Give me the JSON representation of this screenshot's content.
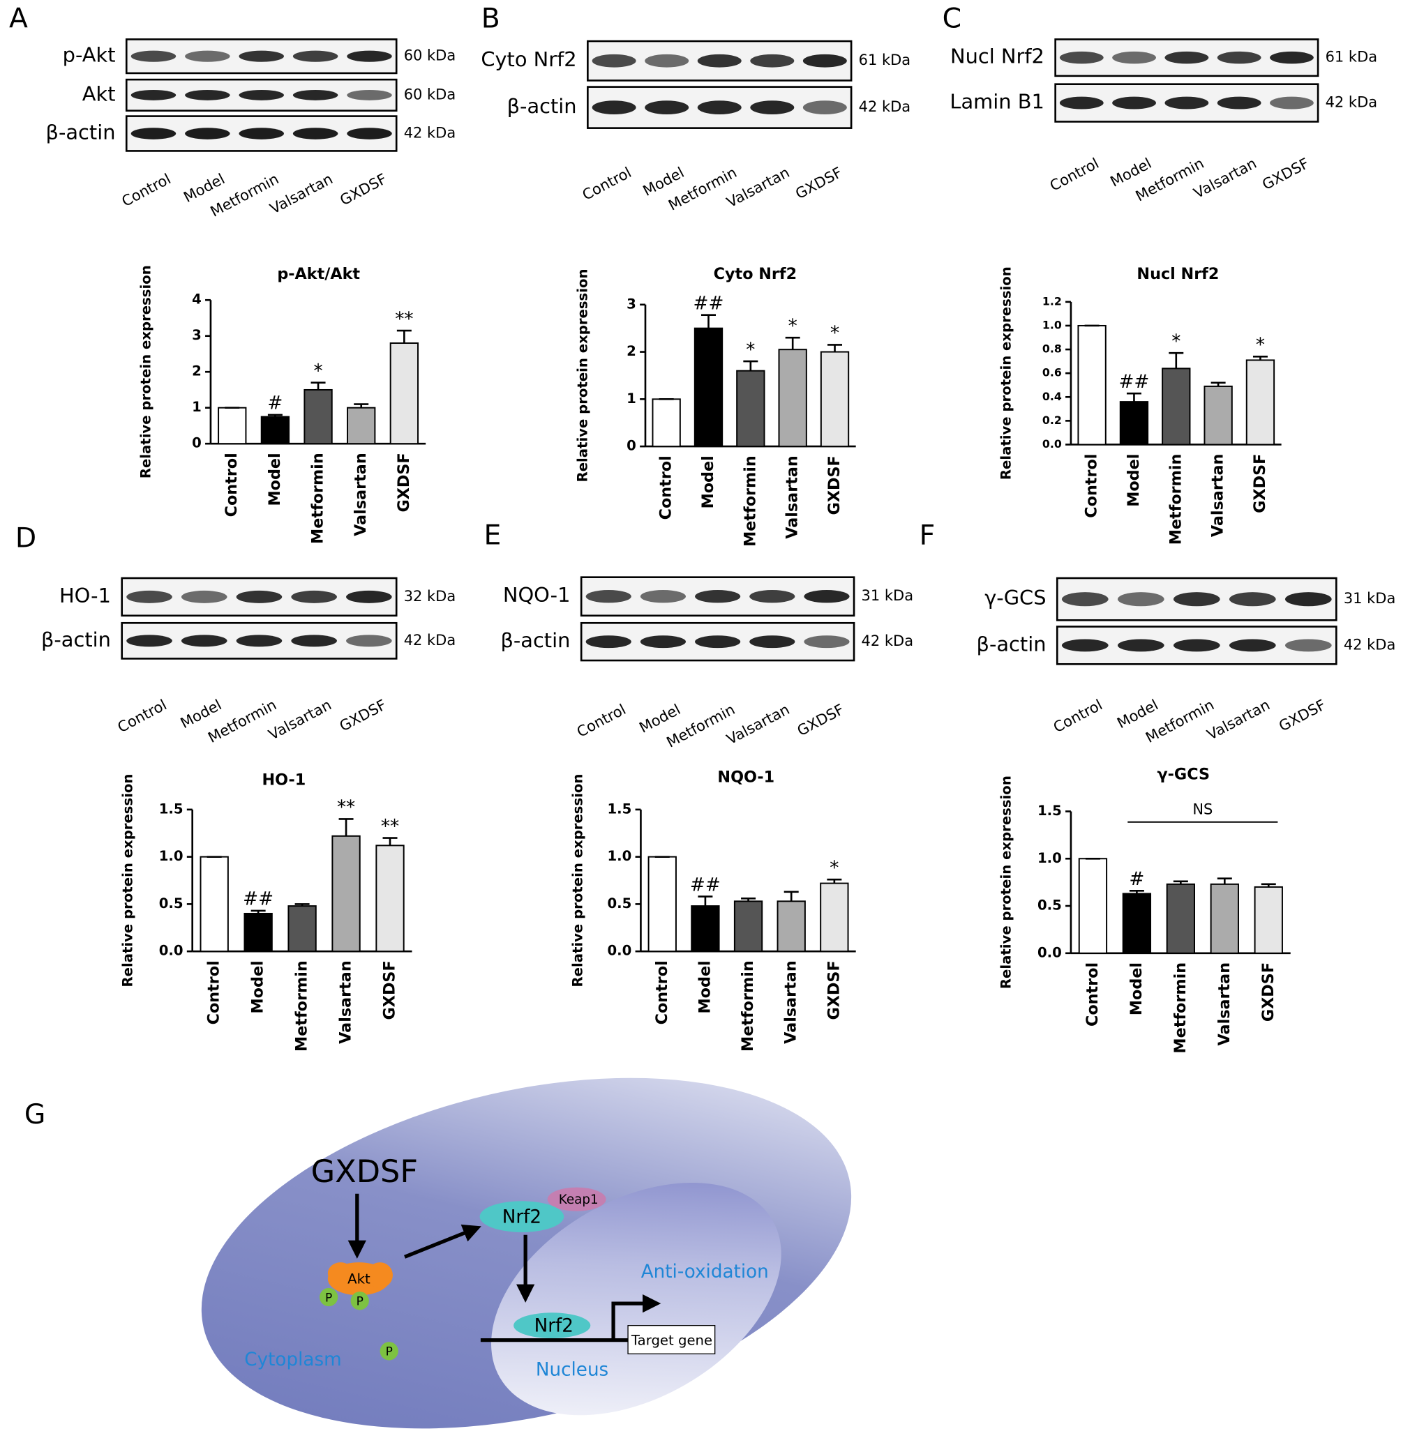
{
  "panel_labels": [
    "A",
    "B",
    "C",
    "D",
    "E",
    "F",
    "G"
  ],
  "lanes": [
    "Control",
    "Model",
    "Metformin",
    "Valsartan",
    "GXDSF"
  ],
  "blots": [
    {
      "rows": [
        {
          "label": "p-Akt",
          "kda": "60 kDa"
        },
        {
          "label": "Akt",
          "kda": "60 kDa"
        },
        {
          "label": "β-actin",
          "kda": "42 kDa"
        }
      ]
    },
    {
      "rows": [
        {
          "label": "Cyto Nrf2",
          "kda": "61 kDa"
        },
        {
          "label": "β-actin",
          "kda": "42 kDa"
        }
      ]
    },
    {
      "rows": [
        {
          "label": "Nucl Nrf2",
          "kda": "61 kDa"
        },
        {
          "label": "Lamin B1",
          "kda": "42 kDa"
        }
      ]
    },
    {
      "rows": [
        {
          "label": "HO-1",
          "kda": "32 kDa"
        },
        {
          "label": "β-actin",
          "kda": "42 kDa"
        }
      ]
    },
    {
      "rows": [
        {
          "label": "NQO-1",
          "kda": "31 kDa"
        },
        {
          "label": "β-actin",
          "kda": "42 kDa"
        }
      ]
    },
    {
      "rows": [
        {
          "label": "γ-GCS",
          "kda": "31 kDa"
        },
        {
          "label": "β-actin",
          "kda": "42 kDa"
        }
      ]
    }
  ],
  "chart_data": [
    {
      "type": "bar",
      "title": "p-Akt/Akt",
      "y_label": "Relative protein expression",
      "categories": [
        "Control",
        "Model",
        "Metformin",
        "Valsartan",
        "GXDSF"
      ],
      "values": [
        1,
        0.75,
        1.5,
        1.0,
        2.8
      ],
      "errors": [
        0,
        0.05,
        0.2,
        0.1,
        0.35
      ],
      "colors": [
        "#ffffff",
        "#000000",
        "#555555",
        "#ababab",
        "#e6e6e6"
      ],
      "annotations": [
        null,
        "#",
        "*",
        null,
        "**"
      ],
      "ylim": [
        0,
        4
      ],
      "yticks": [
        0,
        1,
        2,
        3,
        4
      ]
    },
    {
      "type": "bar",
      "title": "Cyto Nrf2",
      "y_label": "Relative protein expression",
      "categories": [
        "Control",
        "Model",
        "Metformin",
        "Valsartan",
        "GXDSF"
      ],
      "values": [
        1,
        2.5,
        1.6,
        2.05,
        2.0
      ],
      "errors": [
        0,
        0.28,
        0.2,
        0.25,
        0.15
      ],
      "colors": [
        "#ffffff",
        "#000000",
        "#555555",
        "#ababab",
        "#e6e6e6"
      ],
      "annotations": [
        null,
        "##",
        "*",
        "*",
        "*"
      ],
      "ylim": [
        0,
        3
      ],
      "yticks": [
        0,
        1,
        2,
        3
      ]
    },
    {
      "type": "bar",
      "title": "Nucl Nrf2",
      "y_label": "Relative protein expression",
      "categories": [
        "Control",
        "Model",
        "Metformin",
        "Valsartan",
        "GXDSF"
      ],
      "values": [
        1.0,
        0.36,
        0.64,
        0.49,
        0.71
      ],
      "errors": [
        0,
        0.07,
        0.13,
        0.03,
        0.03
      ],
      "colors": [
        "#ffffff",
        "#000000",
        "#555555",
        "#ababab",
        "#e6e6e6"
      ],
      "annotations": [
        null,
        "##",
        "*",
        null,
        "*"
      ],
      "ylim": [
        0,
        1.2
      ],
      "yticks": [
        {
          "value": 0,
          "label": "0.0"
        },
        0.2,
        0.4,
        0.6,
        0.8,
        {
          "value": 1,
          "label": "1.0"
        },
        1.2
      ]
    },
    {
      "type": "bar",
      "title": "HO-1",
      "y_label": "Relative protein expression",
      "categories": [
        "Control",
        "Model",
        "Metformin",
        "Valsartan",
        "GXDSF"
      ],
      "values": [
        1,
        0.4,
        0.48,
        1.22,
        1.12
      ],
      "errors": [
        0,
        0.03,
        0.02,
        0.18,
        0.08
      ],
      "colors": [
        "#ffffff",
        "#000000",
        "#555555",
        "#ababab",
        "#e6e6e6"
      ],
      "annotations": [
        null,
        "##",
        null,
        "**",
        "**"
      ],
      "ylim": [
        0,
        1.5
      ],
      "yticks": [
        {
          "value": 0,
          "label": "0.0"
        },
        0.5,
        {
          "value": 1,
          "label": "1.0"
        },
        1.5
      ]
    },
    {
      "type": "bar",
      "title": "NQO-1",
      "y_label": "Relative protein expression",
      "categories": [
        "Control",
        "Model",
        "Metformin",
        "Valsartan",
        "GXDSF"
      ],
      "values": [
        1,
        0.48,
        0.53,
        0.53,
        0.72
      ],
      "errors": [
        0,
        0.1,
        0.03,
        0.1,
        0.04
      ],
      "colors": [
        "#ffffff",
        "#000000",
        "#555555",
        "#ababab",
        "#e6e6e6"
      ],
      "annotations": [
        null,
        "##",
        null,
        null,
        "*"
      ],
      "ylim": [
        0,
        1.5
      ],
      "yticks": [
        {
          "value": 0,
          "label": "0.0"
        },
        0.5,
        {
          "value": 1,
          "label": "1.0"
        },
        1.5
      ]
    },
    {
      "type": "bar",
      "title": "γ-GCS",
      "y_label": "Relative protein expression",
      "categories": [
        "Control",
        "Model",
        "Metformin",
        "Valsartan",
        "GXDSF"
      ],
      "values": [
        1,
        0.63,
        0.73,
        0.73,
        0.7
      ],
      "errors": [
        0,
        0.03,
        0.03,
        0.06,
        0.03
      ],
      "colors": [
        "#ffffff",
        "#000000",
        "#555555",
        "#ababab",
        "#e6e6e6"
      ],
      "annotations": [
        null,
        "#",
        null,
        null,
        null
      ],
      "bracket": {
        "text": "NS",
        "span": [
          1,
          4
        ]
      },
      "ylim": [
        0,
        1.5
      ],
      "yticks": [
        {
          "value": 0,
          "label": "0.0"
        },
        0.5,
        {
          "value": 1,
          "label": "1.0"
        },
        1.5
      ]
    }
  ],
  "diagram": {
    "drug": "GXDSF",
    "akt": "Akt",
    "phospho": "P",
    "nrf2": "Nrf2",
    "keap1": "Keap1",
    "effect": "Anti-oxidation",
    "target": "Target gene",
    "cytoplasm": "Cytoplasm",
    "nucleus": "Nucleus"
  }
}
